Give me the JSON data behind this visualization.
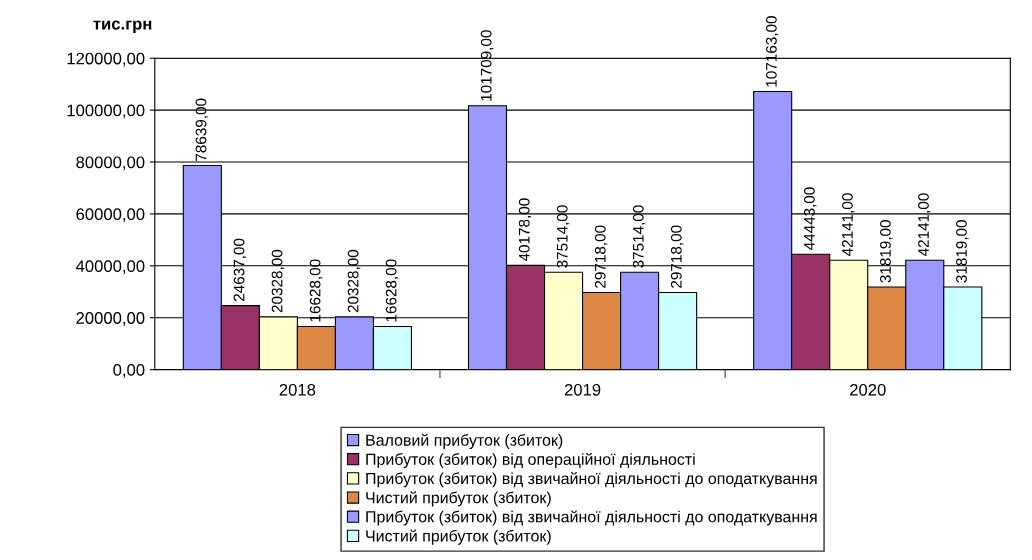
{
  "chart_data": {
    "type": "bar",
    "ylabel": "тис.грн",
    "categories": [
      "2018",
      "2019",
      "2020"
    ],
    "ylim": [
      0,
      120000
    ],
    "yticks": [
      {
        "value": 0,
        "label": "0,00"
      },
      {
        "value": 20000,
        "label": "20000,00"
      },
      {
        "value": 40000,
        "label": "40000,00"
      },
      {
        "value": 60000,
        "label": "60000,00"
      },
      {
        "value": 80000,
        "label": "80000,00"
      },
      {
        "value": 100000,
        "label": "100000,00"
      },
      {
        "value": 120000,
        "label": "120000,00"
      }
    ],
    "grid": "y",
    "legend": "bottom",
    "series": [
      {
        "name": "Валовий прибуток (збиток)",
        "color": "#9999ff",
        "values": [
          78639,
          101709,
          107163
        ],
        "value_labels": [
          "78639,00",
          "101709,00",
          "107163,00"
        ]
      },
      {
        "name": "Прибуток (збиток) від операційної діяльності",
        "color": "#993366",
        "values": [
          24637,
          40178,
          44443
        ],
        "value_labels": [
          "24637,00",
          "40178,00",
          "44443,00"
        ]
      },
      {
        "name": "Прибуток (збиток) від звичайної діяльності до оподаткування",
        "color": "#ffffcc",
        "values": [
          20328,
          37514,
          42141
        ],
        "value_labels": [
          "20328,00",
          "37514,00",
          "42141,00"
        ]
      },
      {
        "name": "Чистий прибуток (збиток)",
        "color": "#dd8844",
        "values": [
          16628,
          29718,
          31819
        ],
        "value_labels": [
          "16628,00",
          "29718,00",
          "31819,00"
        ]
      },
      {
        "name": "Прибуток (збиток) від звичайної діяльності до оподаткування",
        "color": "#9999ff",
        "values": [
          20328,
          37514,
          42141
        ],
        "value_labels": [
          "20328,00",
          "37514,00",
          "42141,00"
        ]
      },
      {
        "name": "Чистий прибуток (збиток)",
        "color": "#ccffff",
        "values": [
          16628,
          29718,
          31819
        ],
        "value_labels": [
          "16628,00",
          "29718,00",
          "31819,00"
        ]
      }
    ]
  }
}
